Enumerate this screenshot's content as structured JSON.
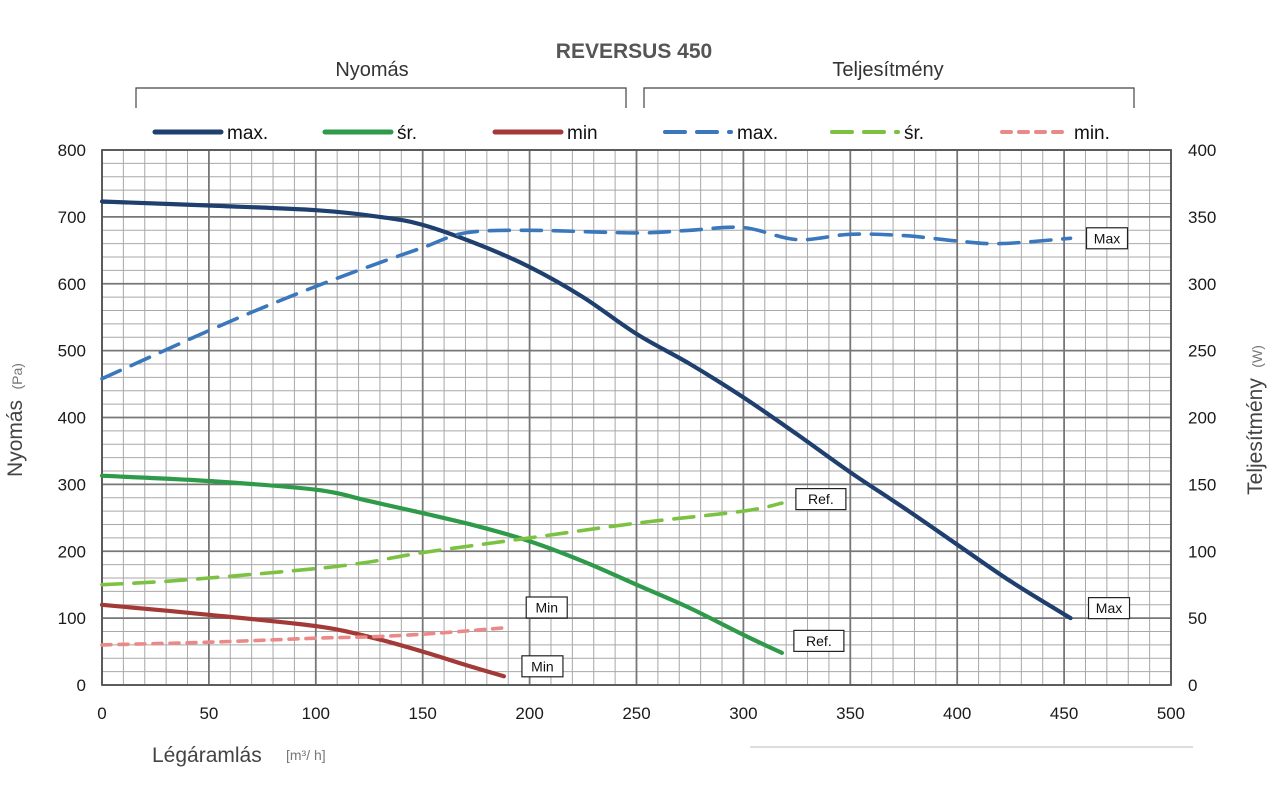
{
  "chart_data": {
    "type": "line",
    "title": "REVERSUS 450",
    "group_labels": {
      "left": "Nyomás",
      "right": "Teljesítmény"
    },
    "xlabel": "Légáramlás",
    "xunit": "[m³/ h]",
    "ylabel_left": "Nyomás",
    "yunit_left": "(Pa)",
    "ylabel_right": "Teljesítmény",
    "yunit_right": "(W)",
    "xlim": [
      0,
      500
    ],
    "ylim_left": [
      0,
      800
    ],
    "ylim_right": [
      0,
      400
    ],
    "x_ticks": [
      "0",
      "50",
      "100",
      "150",
      "200",
      "250",
      "300",
      "350",
      "400",
      "450",
      "500"
    ],
    "y_left_ticks": [
      "0",
      "100",
      "200",
      "300",
      "400",
      "500",
      "600",
      "700",
      "800"
    ],
    "y_right_ticks": [
      "0",
      "50",
      "100",
      "150",
      "200",
      "250",
      "300",
      "350",
      "400"
    ],
    "grid": true,
    "legend_position": "top",
    "series": [
      {
        "name": "max.",
        "axis": "left",
        "style": "solid",
        "color": "#1f3f6e",
        "end_tag": "Max",
        "points": [
          [
            0,
            723
          ],
          [
            50,
            717
          ],
          [
            100,
            710
          ],
          [
            130,
            700
          ],
          [
            150,
            688
          ],
          [
            175,
            660
          ],
          [
            200,
            625
          ],
          [
            225,
            580
          ],
          [
            250,
            525
          ],
          [
            275,
            480
          ],
          [
            300,
            430
          ],
          [
            325,
            375
          ],
          [
            350,
            318
          ],
          [
            375,
            265
          ],
          [
            400,
            210
          ],
          [
            425,
            155
          ],
          [
            453,
            100
          ]
        ]
      },
      {
        "name": "śr.",
        "axis": "left",
        "style": "solid",
        "color": "#2e9a4a",
        "end_tag": "Ref.",
        "points": [
          [
            0,
            313
          ],
          [
            50,
            305
          ],
          [
            100,
            292
          ],
          [
            125,
            275
          ],
          [
            150,
            257
          ],
          [
            175,
            238
          ],
          [
            200,
            215
          ],
          [
            225,
            185
          ],
          [
            250,
            150
          ],
          [
            275,
            115
          ],
          [
            300,
            75
          ],
          [
            318,
            48
          ]
        ]
      },
      {
        "name": "min",
        "axis": "left",
        "style": "solid",
        "color": "#a33a38",
        "end_tag": "Min",
        "points": [
          [
            0,
            120
          ],
          [
            50,
            105
          ],
          [
            100,
            88
          ],
          [
            125,
            72
          ],
          [
            150,
            50
          ],
          [
            170,
            30
          ],
          [
            188,
            13
          ]
        ]
      },
      {
        "name": "max.",
        "axis": "right",
        "style": "dashed",
        "color": "#3a77bd",
        "end_tag": "Max",
        "points": [
          [
            0,
            229
          ],
          [
            25,
            247
          ],
          [
            50,
            265
          ],
          [
            75,
            282
          ],
          [
            100,
            298
          ],
          [
            125,
            313
          ],
          [
            150,
            327
          ],
          [
            170,
            338
          ],
          [
            200,
            340
          ],
          [
            250,
            338
          ],
          [
            275,
            340
          ],
          [
            300,
            342
          ],
          [
            325,
            333
          ],
          [
            350,
            337
          ],
          [
            375,
            336
          ],
          [
            400,
            332
          ],
          [
            420,
            330
          ],
          [
            453,
            334
          ]
        ]
      },
      {
        "name": "śr.",
        "axis": "right",
        "style": "dashed",
        "color": "#7cc242",
        "end_tag": "Ref.",
        "points": [
          [
            0,
            75
          ],
          [
            25,
            77
          ],
          [
            50,
            80
          ],
          [
            100,
            87
          ],
          [
            125,
            92
          ],
          [
            150,
            99
          ],
          [
            200,
            110
          ],
          [
            250,
            121
          ],
          [
            300,
            130
          ],
          [
            318,
            136
          ]
        ]
      },
      {
        "name": "min.",
        "axis": "right",
        "style": "dashed",
        "color": "#ea8a88",
        "end_tag": "Min",
        "points": [
          [
            0,
            30
          ],
          [
            50,
            32
          ],
          [
            100,
            35
          ],
          [
            125,
            36
          ],
          [
            150,
            38
          ],
          [
            175,
            41
          ],
          [
            190,
            43
          ]
        ]
      }
    ]
  }
}
